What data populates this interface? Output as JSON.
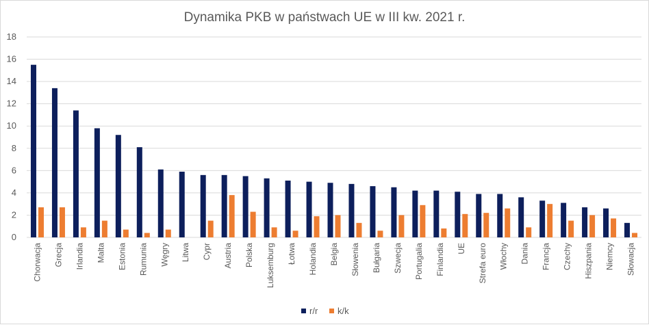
{
  "chart_data": {
    "type": "bar",
    "title": "Dynamika PKB w państwach UE w III kw. 2021 r.",
    "xlabel": "",
    "ylabel": "",
    "ylim": [
      0,
      18
    ],
    "yticks": [
      0,
      2,
      4,
      6,
      8,
      10,
      12,
      14,
      16,
      18
    ],
    "grid": true,
    "legend_position": "bottom",
    "categories": [
      "Chorwacja",
      "Grecja",
      "Irlandia",
      "Malta",
      "Estonia",
      "Rumunia",
      "Węgry",
      "Litwa",
      "Cypr",
      "Austria",
      "Polska",
      "Luksemburg",
      "Łotwa",
      "Holandia",
      "Belgia",
      "Słowenia",
      "Bułgaria",
      "Szwecja",
      "Portugalia",
      "Finlandia",
      "UE",
      "Strefa euro",
      "Włochy",
      "Dania",
      "Francja",
      "Czechy",
      "Hiszpania",
      "Niemcy",
      "Słowacja"
    ],
    "series": [
      {
        "name": "r/r",
        "color": "#0d1f5c",
        "values": [
          15.5,
          13.4,
          11.4,
          9.8,
          9.2,
          8.1,
          6.1,
          5.9,
          5.6,
          5.6,
          5.5,
          5.3,
          5.1,
          5.0,
          4.9,
          4.8,
          4.6,
          4.5,
          4.2,
          4.2,
          4.1,
          3.9,
          3.9,
          3.6,
          3.3,
          3.1,
          2.7,
          2.6,
          1.3
        ]
      },
      {
        "name": "k/k",
        "color": "#ed7d31",
        "values": [
          2.7,
          2.7,
          0.9,
          1.5,
          0.7,
          0.4,
          0.7,
          0.0,
          1.5,
          3.8,
          2.3,
          0.9,
          0.6,
          1.9,
          2.0,
          1.3,
          0.6,
          2.0,
          2.9,
          0.8,
          2.1,
          2.2,
          2.6,
          0.9,
          3.0,
          1.5,
          2.0,
          1.7,
          0.4
        ]
      }
    ]
  }
}
